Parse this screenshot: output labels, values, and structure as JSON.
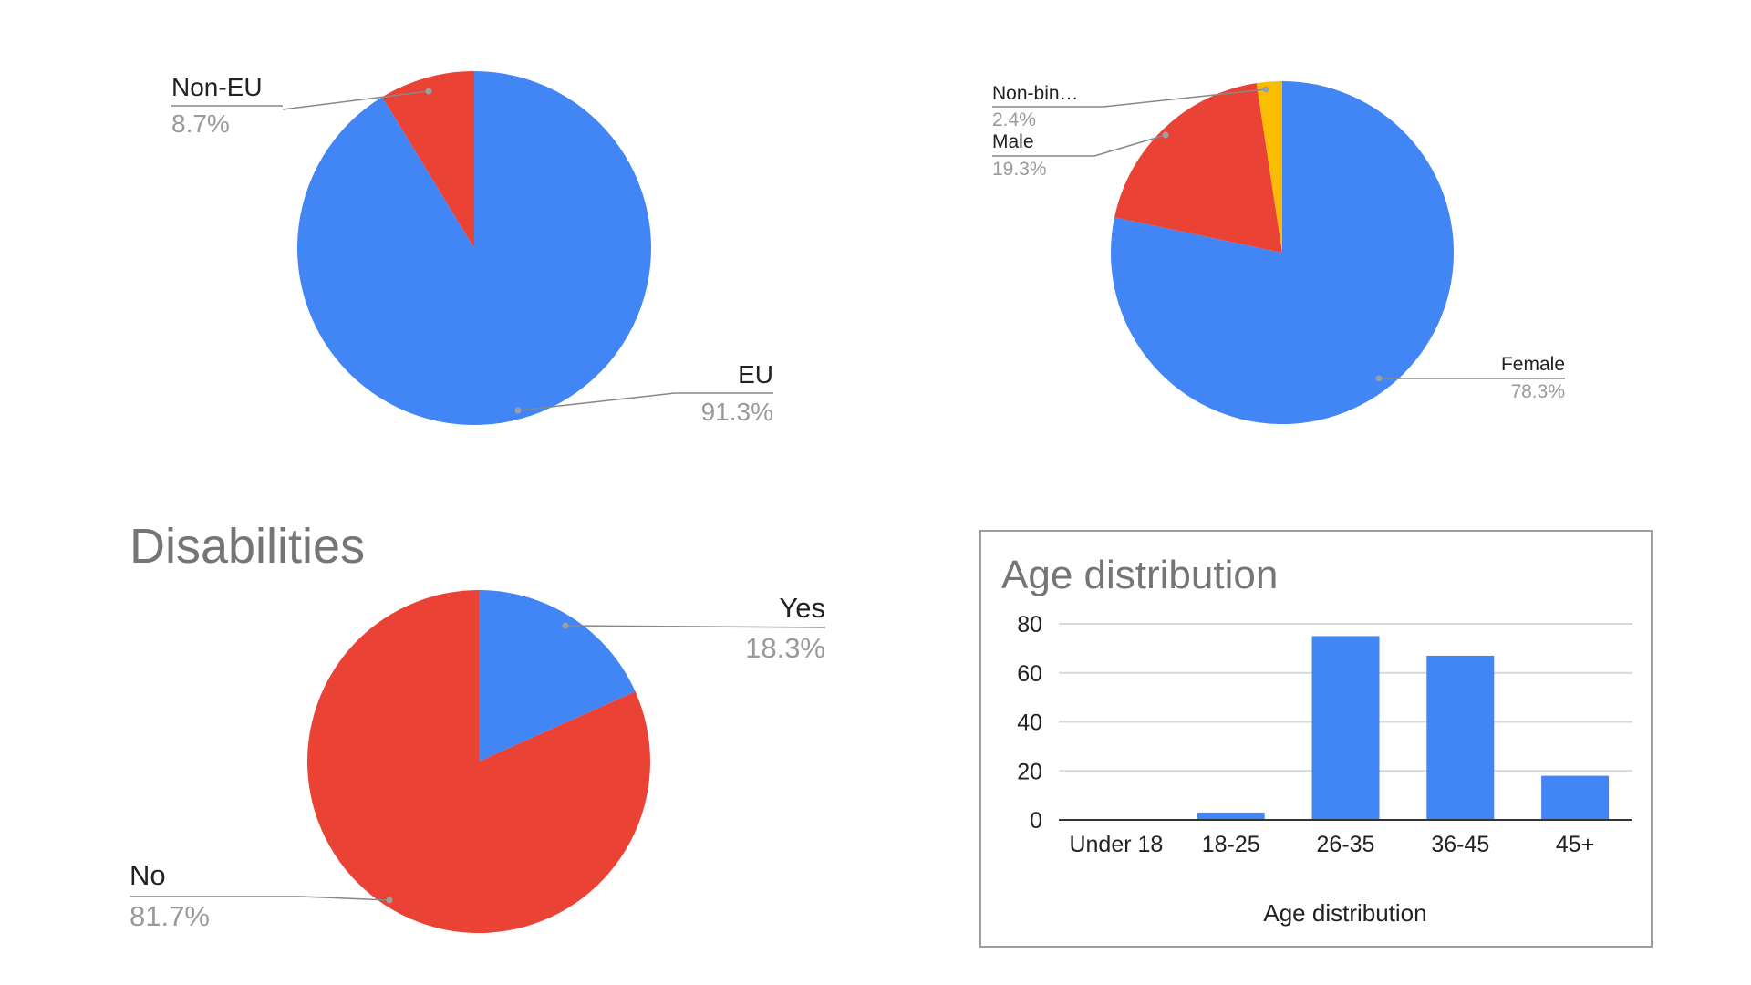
{
  "colors": {
    "blue": "#4285f4",
    "red": "#ea4335",
    "yellow": "#fbbc04"
  },
  "chart_data": [
    {
      "type": "pie",
      "title": "",
      "slices": [
        {
          "label": "EU",
          "value": 91.3,
          "display": "91.3%",
          "color": "#4285f4"
        },
        {
          "label": "Non-EU",
          "value": 8.7,
          "display": "8.7%",
          "color": "#ea4335"
        }
      ]
    },
    {
      "type": "pie",
      "title": "",
      "slices": [
        {
          "label": "Female",
          "value": 78.3,
          "display": "78.3%",
          "color": "#4285f4"
        },
        {
          "label": "Male",
          "value": 19.3,
          "display": "19.3%",
          "color": "#ea4335"
        },
        {
          "label": "Non-bin…",
          "value": 2.4,
          "display": "2.4%",
          "color": "#fbbc04"
        }
      ]
    },
    {
      "type": "pie",
      "title": "Disabilities",
      "slices": [
        {
          "label": "Yes",
          "value": 18.3,
          "display": "18.3%",
          "color": "#4285f4"
        },
        {
          "label": "No",
          "value": 81.7,
          "display": "81.7%",
          "color": "#ea4335"
        }
      ]
    },
    {
      "type": "bar",
      "title": "Age distribution",
      "xlabel": "Age distribution",
      "ylabel": "",
      "categories": [
        "Under 18",
        "18-25",
        "26-35",
        "36-45",
        "45+"
      ],
      "values": [
        0,
        3,
        75,
        67,
        18
      ],
      "ylim": [
        0,
        80
      ],
      "yticks": [
        0,
        20,
        40,
        60,
        80
      ],
      "grid": true,
      "color": "#4285f4"
    }
  ]
}
